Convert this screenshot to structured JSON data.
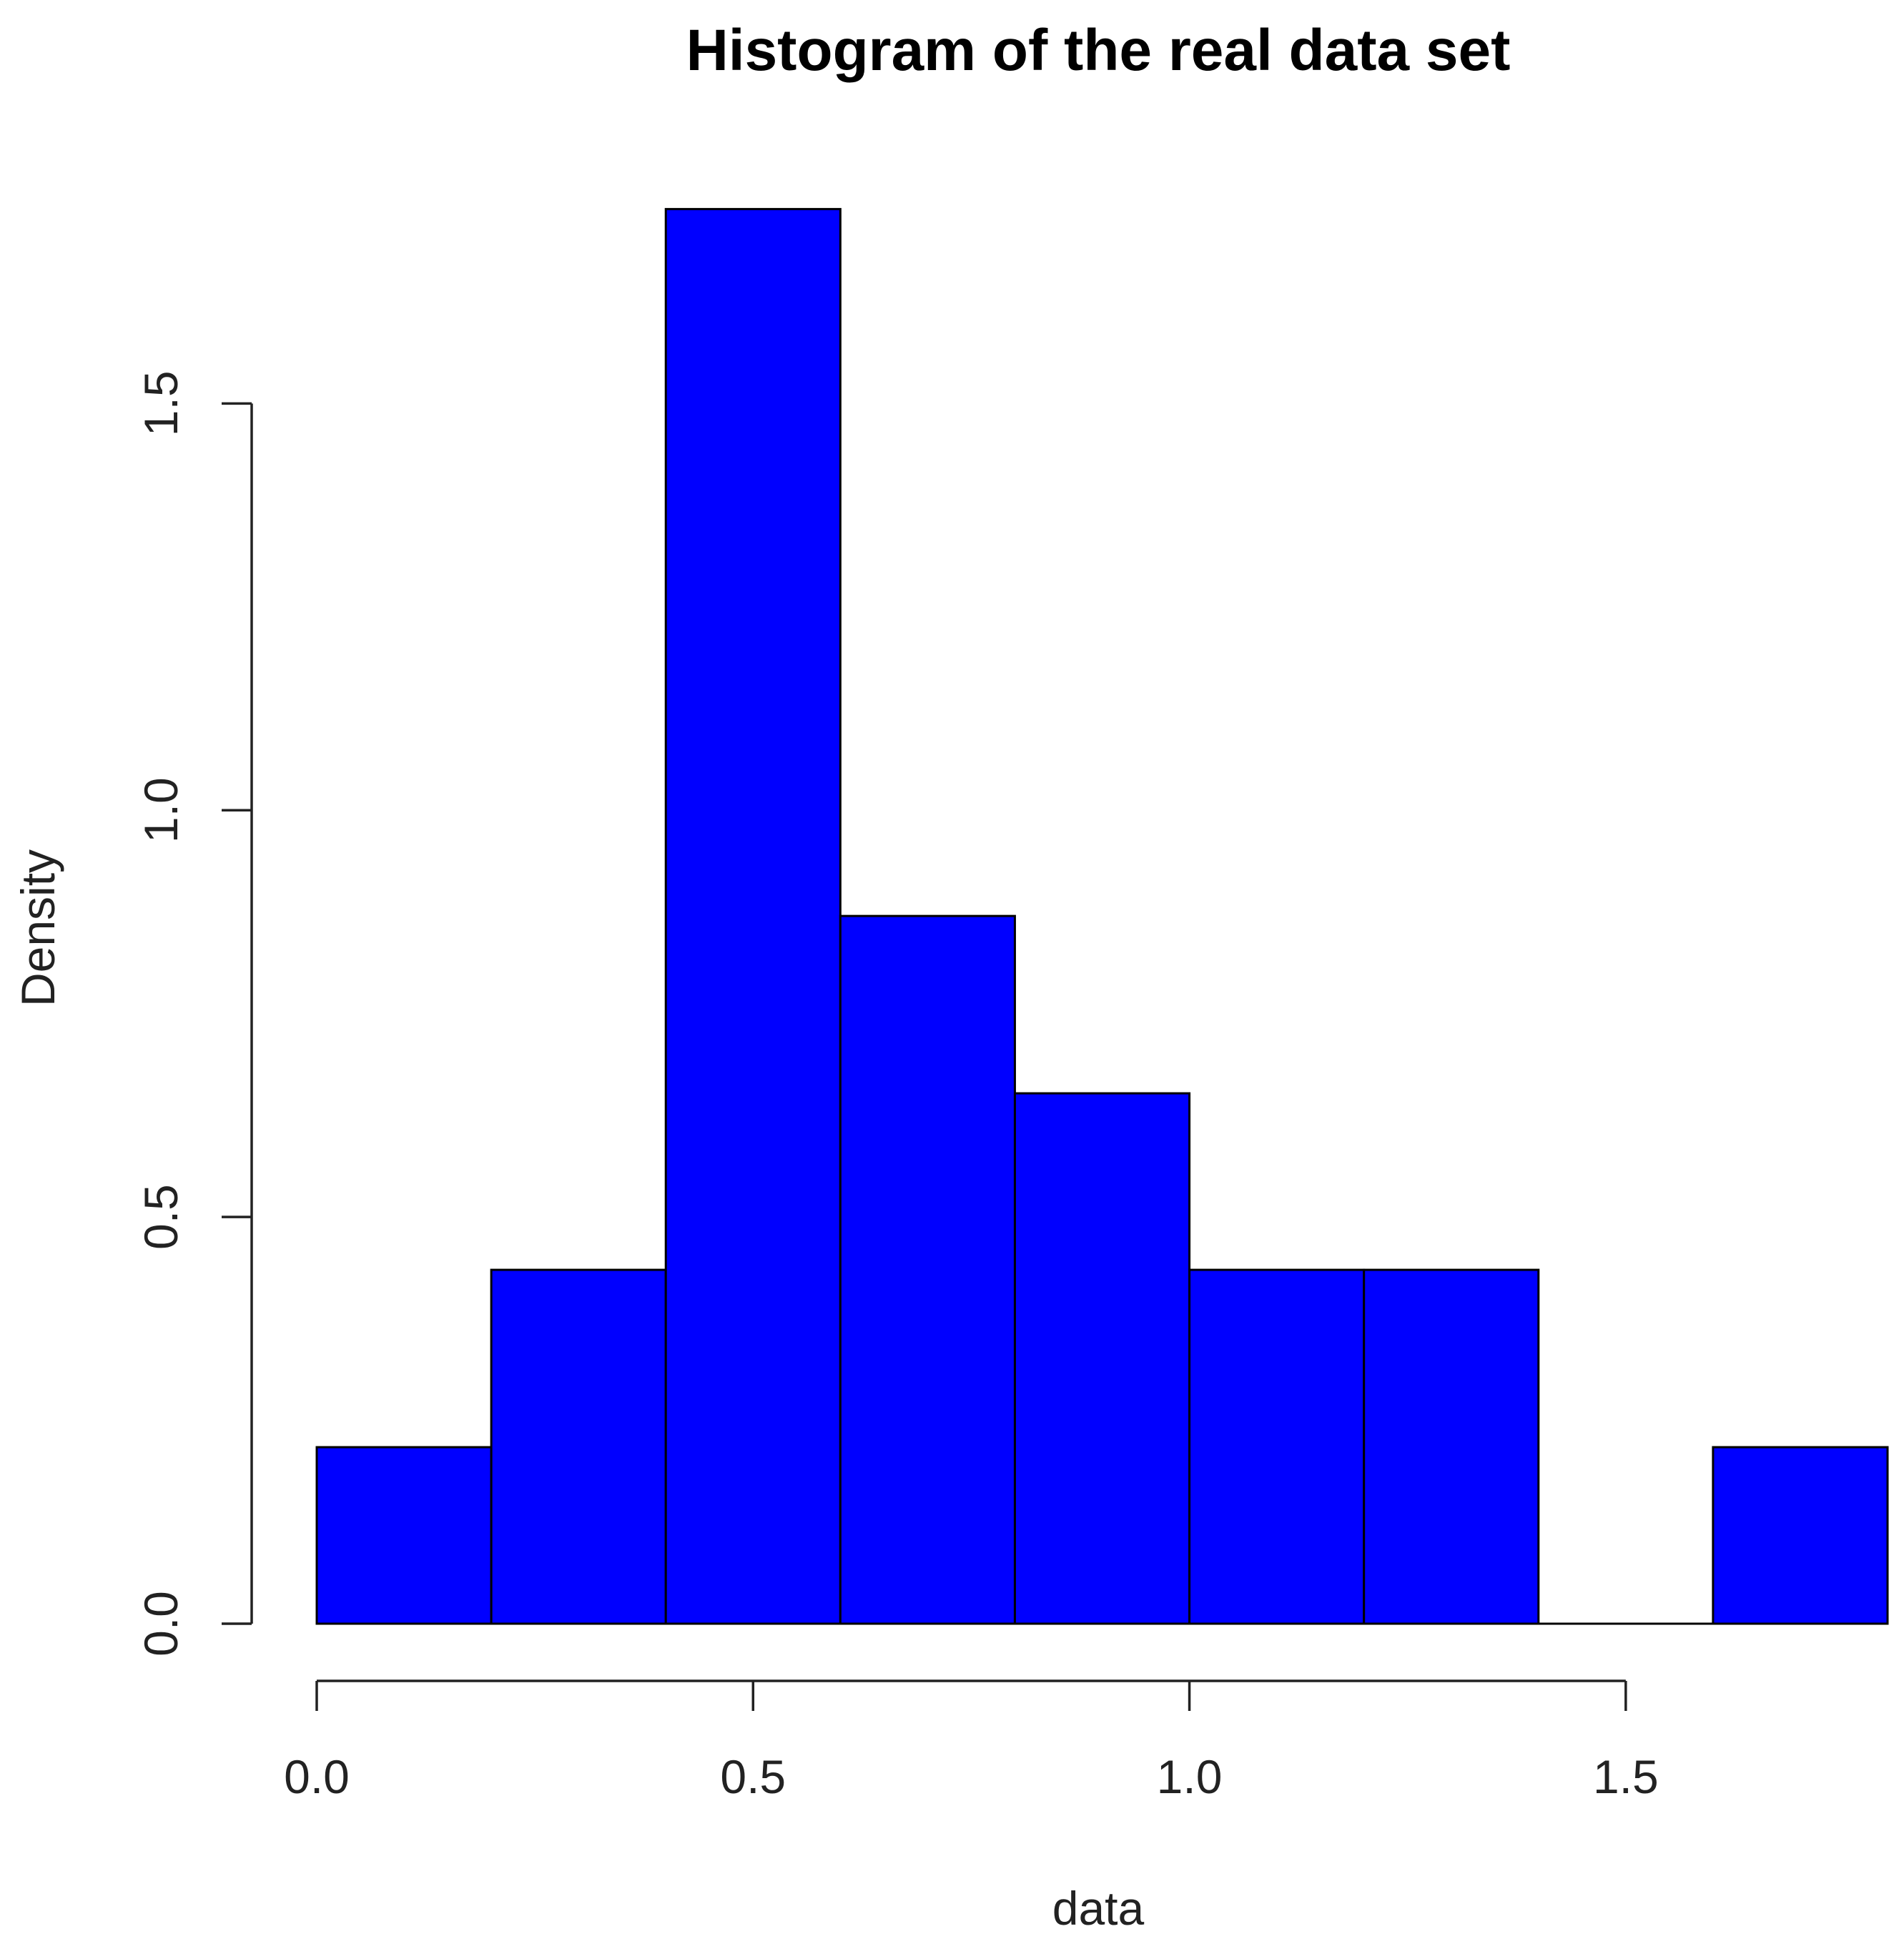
{
  "chart_data": {
    "type": "bar",
    "subtype": "histogram",
    "title": "Histogram of the real data set",
    "xlabel": "data",
    "ylabel": "Density",
    "bins": [
      {
        "from": 0.0,
        "to": 0.2,
        "density": 0.217
      },
      {
        "from": 0.2,
        "to": 0.4,
        "density": 0.435
      },
      {
        "from": 0.4,
        "to": 0.6,
        "density": 1.739
      },
      {
        "from": 0.6,
        "to": 0.8,
        "density": 0.87
      },
      {
        "from": 0.8,
        "to": 1.0,
        "density": 0.652
      },
      {
        "from": 1.0,
        "to": 1.2,
        "density": 0.435
      },
      {
        "from": 1.2,
        "to": 1.4,
        "density": 0.435
      },
      {
        "from": 1.4,
        "to": 1.6,
        "density": 0.0
      },
      {
        "from": 1.6,
        "to": 1.8,
        "density": 0.217
      }
    ],
    "xticks": [
      {
        "value": 0.0,
        "label": "0.0"
      },
      {
        "value": 0.5,
        "label": "0.5"
      },
      {
        "value": 1.0,
        "label": "1.0"
      },
      {
        "value": 1.5,
        "label": "1.5"
      }
    ],
    "yticks": [
      {
        "value": 0.0,
        "label": "0.0"
      },
      {
        "value": 0.5,
        "label": "0.5"
      },
      {
        "value": 1.0,
        "label": "1.0"
      },
      {
        "value": 1.5,
        "label": "1.5"
      }
    ],
    "xlim": [
      0.0,
      1.8
    ],
    "ylim": [
      0.0,
      1.8
    ],
    "bar_color": "#0000ff",
    "bar_edge_color": "#000000",
    "grid": false,
    "legend": "none"
  }
}
